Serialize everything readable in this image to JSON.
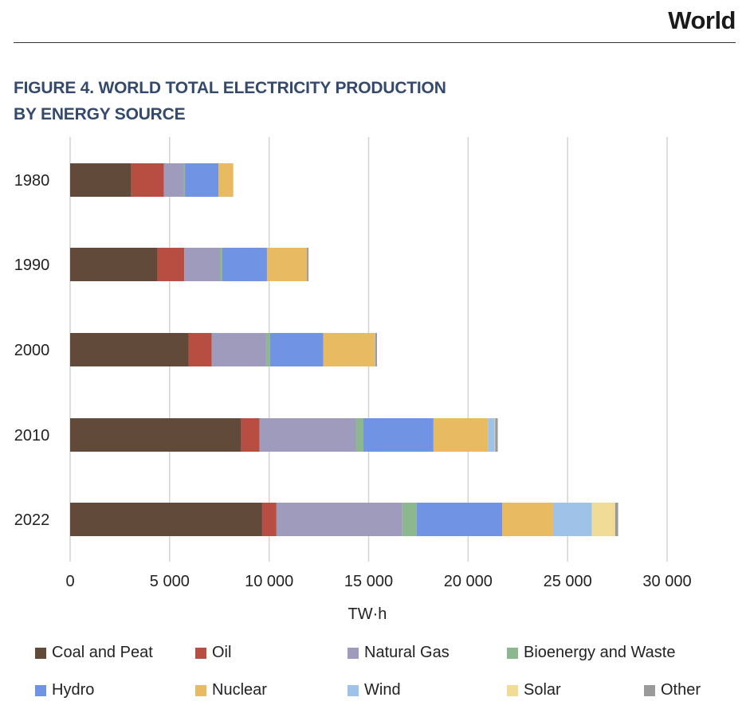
{
  "header": {
    "section": "World"
  },
  "figure": {
    "title_line1": "FIGURE 4. WORLD TOTAL ELECTRICITY PRODUCTION",
    "title_line2": "BY ENERGY SOURCE"
  },
  "chart_data": {
    "type": "bar",
    "orientation": "horizontal",
    "stacked": true,
    "title": "FIGURE 4. WORLD TOTAL ELECTRICITY PRODUCTION BY ENERGY SOURCE",
    "xlabel": "TW·h",
    "ylabel": "",
    "xlim": [
      0,
      30000
    ],
    "xticks": [
      0,
      5000,
      10000,
      15000,
      20000,
      25000,
      30000
    ],
    "xtick_labels": [
      "0",
      "5 000",
      "10 000",
      "15 000",
      "20 000",
      "25 000",
      "30 000"
    ],
    "grid": "vertical",
    "legend_position": "bottom",
    "categories": [
      "1980",
      "1990",
      "2000",
      "2010",
      "2022"
    ],
    "series": [
      {
        "name": "Coal and Peat",
        "color": "#614a3a",
        "values": [
          3070,
          4390,
          5950,
          8600,
          9650
        ]
      },
      {
        "name": "Oil",
        "color": "#b84d42",
        "values": [
          1640,
          1340,
          1170,
          920,
          720
        ]
      },
      {
        "name": "Natural Gas",
        "color": "#9f9bbc",
        "values": [
          1000,
          1820,
          2730,
          4840,
          6320
        ]
      },
      {
        "name": "Bioenergy and Waste",
        "color": "#8db88f",
        "values": [
          60,
          100,
          190,
          380,
          720
        ]
      },
      {
        "name": "Hydro",
        "color": "#7094e3",
        "values": [
          1680,
          2250,
          2680,
          3520,
          4300
        ]
      },
      {
        "name": "Nuclear",
        "color": "#e8bb63",
        "values": [
          750,
          2000,
          2590,
          2740,
          2560
        ]
      },
      {
        "name": "Wind",
        "color": "#9ec2e8",
        "values": [
          0,
          0,
          30,
          330,
          1950
        ]
      },
      {
        "name": "Solar",
        "color": "#f0dc96",
        "values": [
          0,
          0,
          0,
          30,
          1170
        ]
      },
      {
        "name": "Other",
        "color": "#9a9a9a",
        "values": [
          0,
          80,
          80,
          130,
          150
        ]
      }
    ]
  }
}
